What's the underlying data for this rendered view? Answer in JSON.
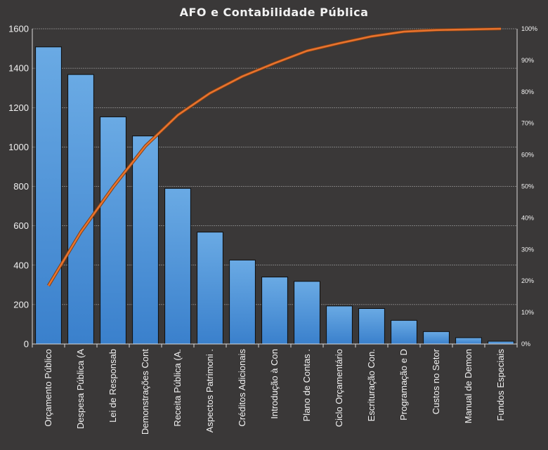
{
  "chart_data": {
    "type": "bar",
    "title": "AFO e Contabilidade Pública",
    "categories": [
      "Orçamento Público",
      "Despesa Pública (A",
      "Lei de Responsab",
      "Demonstrações Cont",
      "Receita Pública (A.",
      "Aspectos Patrimoni .",
      "Créditos Adicionais",
      "Introdução à Con",
      "Plano de Contas .",
      "Ciclo Orçamentário",
      "Escrituração Con.",
      "Programação e D",
      "Custos no Setor",
      "Manual de Demon",
      "Fundos Especiais"
    ],
    "series": [
      {
        "type": "bar",
        "values": [
          1508,
          1368,
          1153,
          1056,
          790,
          568,
          426,
          340,
          318,
          193,
          180,
          120,
          63,
          32,
          14
        ]
      },
      {
        "type": "line",
        "axis": "secondary",
        "values": [
          0.185,
          0.355,
          0.498,
          0.628,
          0.726,
          0.796,
          0.849,
          0.891,
          0.93,
          0.954,
          0.976,
          0.991,
          0.996,
          0.998,
          1.0
        ]
      }
    ],
    "ylim": [
      0,
      1600
    ],
    "yticks": [
      "0",
      "200",
      "400",
      "600",
      "800",
      "1000",
      "1200",
      "1400",
      "1600"
    ],
    "y2lim": [
      0,
      1
    ],
    "y2ticks": [
      "0%",
      "10%",
      "20%",
      "30%",
      "40%",
      "50%",
      "60%",
      "70%",
      "80%",
      "90%",
      "100%"
    ],
    "grid": true,
    "legend": "none",
    "colors": {
      "background": "#3a3838",
      "bar_top": "#6aaae4",
      "bar_bottom": "#3a80cc",
      "bar_stroke": "#0d0d0d",
      "line": "#e8732e",
      "grid": "#bfbfbf",
      "text": "#f2f2f2"
    }
  }
}
